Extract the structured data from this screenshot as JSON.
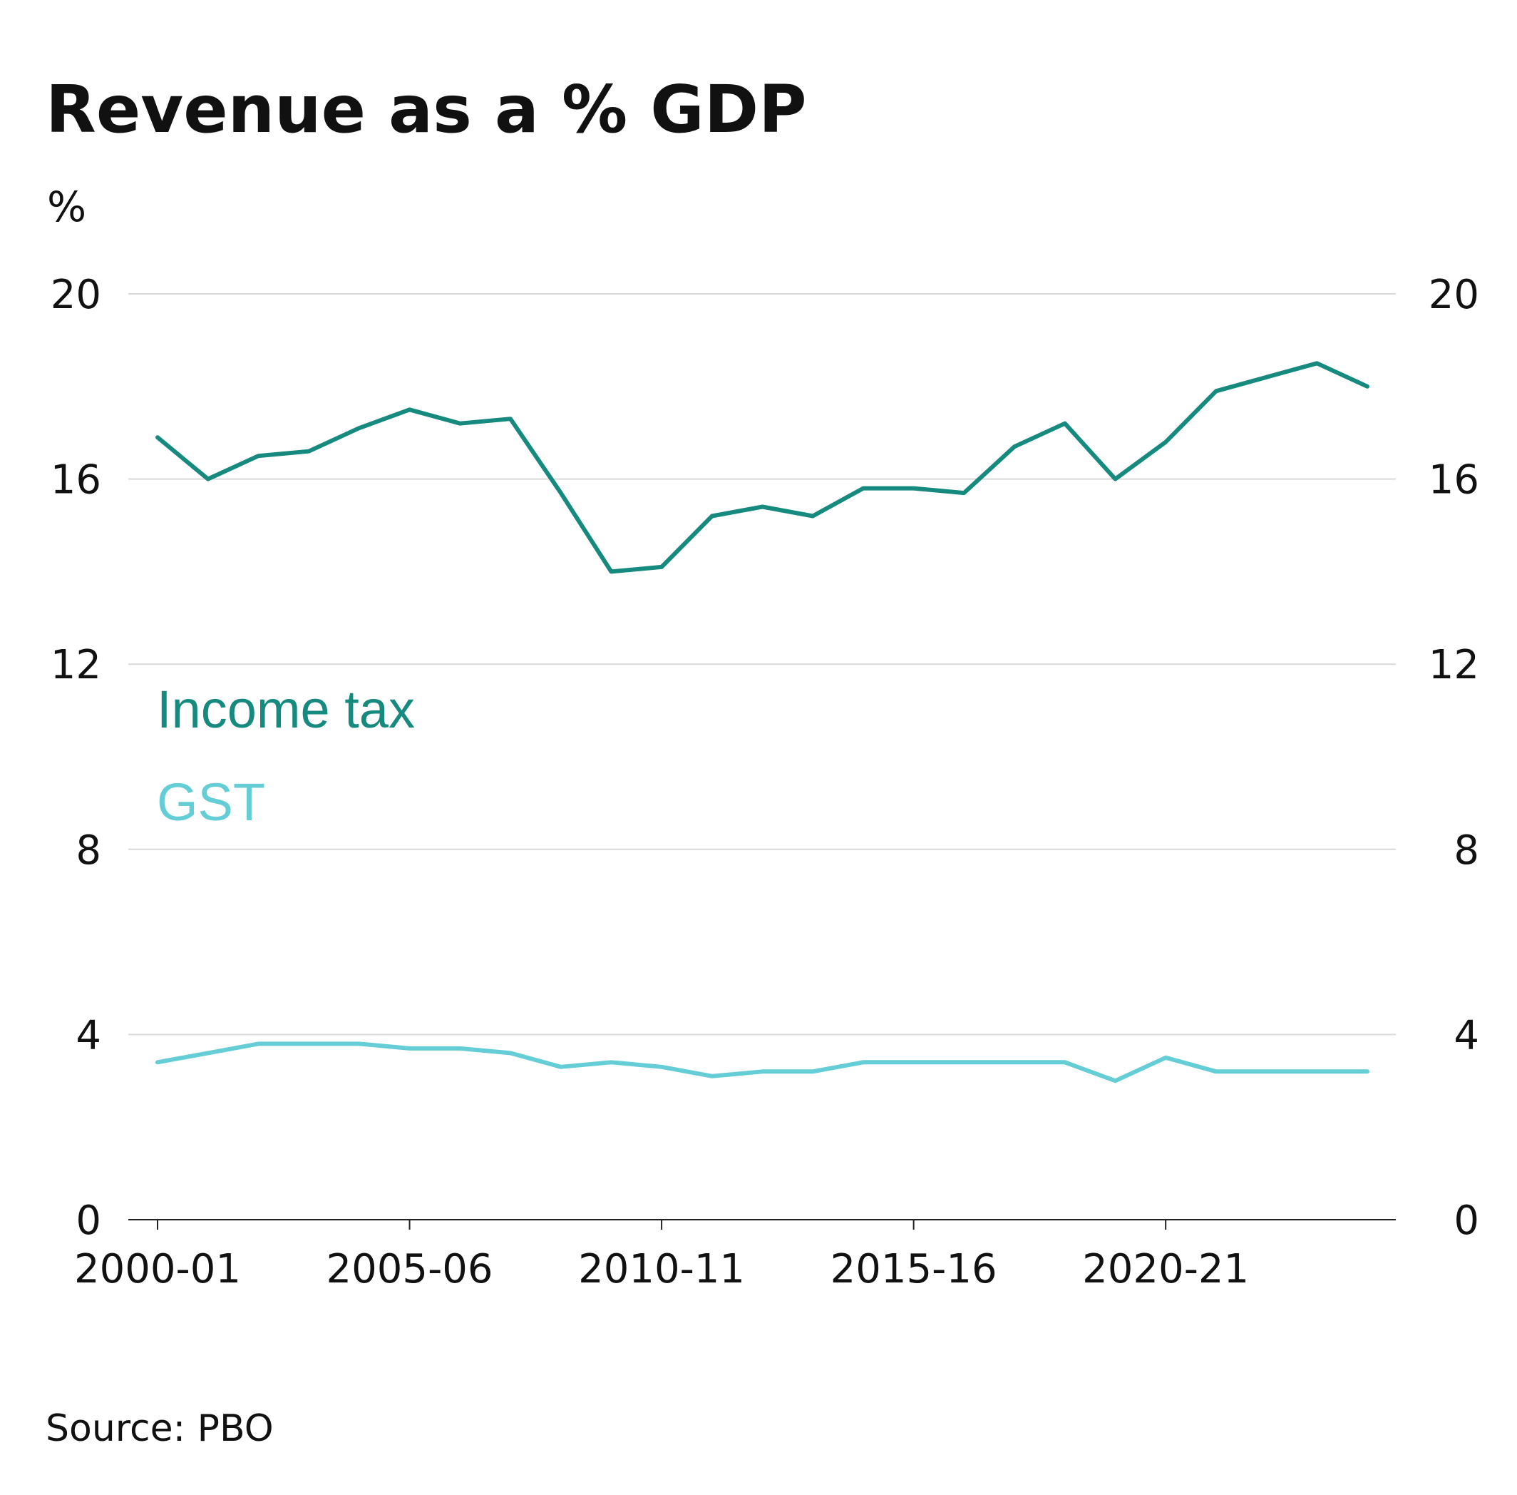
{
  "chart_data": {
    "type": "line",
    "title": "Revenue as a % GDP",
    "ylabel": "%",
    "ylim": [
      0,
      20
    ],
    "yticks": [
      "0",
      "4",
      "8",
      "12",
      "16",
      "20"
    ],
    "y_axis_sides": "both",
    "grid": true,
    "legend_placement": "inside-left",
    "x_tick_labels": [
      "2000-01",
      "2005-06",
      "2010-11",
      "2015-16",
      "2020-21"
    ],
    "x_tick_indices": [
      0,
      5,
      10,
      15,
      20
    ],
    "x": [
      "2000-01",
      "2001-02",
      "2002-03",
      "2003-04",
      "2004-05",
      "2005-06",
      "2006-07",
      "2007-08",
      "2008-09",
      "2009-10",
      "2010-11",
      "2011-12",
      "2012-13",
      "2013-14",
      "2014-15",
      "2015-16",
      "2016-17",
      "2017-18",
      "2018-19",
      "2019-20",
      "2020-21",
      "2021-22",
      "2022-23",
      "2023-24",
      "2024-25"
    ],
    "series": [
      {
        "name": "Income tax",
        "color": "#178a7f",
        "values": [
          16.9,
          16.0,
          16.5,
          16.6,
          17.1,
          17.5,
          17.2,
          17.3,
          15.7,
          14.0,
          14.1,
          15.2,
          15.4,
          15.2,
          15.8,
          15.8,
          15.7,
          16.7,
          17.2,
          16.0,
          16.8,
          17.9,
          18.2,
          18.5,
          18.0
        ]
      },
      {
        "name": "GST",
        "color": "#65cdd5",
        "values": [
          3.4,
          3.6,
          3.8,
          3.8,
          3.8,
          3.7,
          3.7,
          3.6,
          3.3,
          3.4,
          3.3,
          3.1,
          3.2,
          3.2,
          3.4,
          3.4,
          3.4,
          3.4,
          3.4,
          3.0,
          3.5,
          3.2,
          3.2,
          3.2,
          3.2
        ]
      }
    ],
    "source": "Source: PBO"
  }
}
